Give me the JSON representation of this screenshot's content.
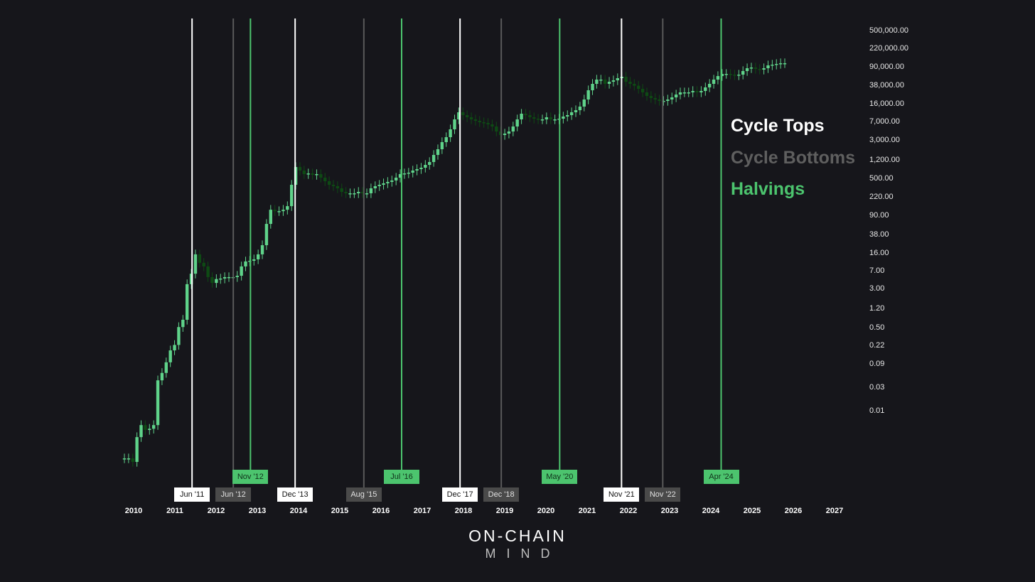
{
  "colors": {
    "background": "#16161b",
    "top": "#ffffff",
    "bottom": "#5a5a5a",
    "bottom_label": "#4a4a4a",
    "halving": "#4cc46e",
    "candle_up": "#5fd38a",
    "candle_down": "#0e4a14"
  },
  "legend": {
    "tops": "Cycle Tops",
    "bottoms": "Cycle Bottoms",
    "halvings": "Halvings"
  },
  "logo": {
    "line1": "ON-CHAIN",
    "line2": "MIND"
  },
  "chart_data": {
    "type": "candlestick",
    "y_scale": "log",
    "grid": false,
    "legend_placement": "right",
    "y_ticks": [
      "500,000.00",
      "220,000.00",
      "90,000.00",
      "38,000.00",
      "16,000.00",
      "7,000.00",
      "3,000.00",
      "1,200.00",
      "500.00",
      "220.00",
      "90.00",
      "38.00",
      "16.00",
      "7.00",
      "3.00",
      "1.20",
      "0.50",
      "0.22",
      "0.09",
      "0.03",
      "0.01"
    ],
    "x_ticks": [
      "2010",
      "2011",
      "2012",
      "2013",
      "2014",
      "2015",
      "2016",
      "2017",
      "2018",
      "2019",
      "2020",
      "2021",
      "2022",
      "2023",
      "2024",
      "2025",
      "2026",
      "2027"
    ],
    "markers": [
      {
        "type": "top",
        "date": "2011-06",
        "label": "Jun '11"
      },
      {
        "type": "halving",
        "date": "2012-11",
        "label": "Nov '12"
      },
      {
        "type": "bottom",
        "date": "2012-06",
        "label": "Jun '12"
      },
      {
        "type": "top",
        "date": "2013-12",
        "label": "Dec '13"
      },
      {
        "type": "bottom",
        "date": "2015-08",
        "label": "Aug '15"
      },
      {
        "type": "halving",
        "date": "2016-07",
        "label": "Jul '16"
      },
      {
        "type": "top",
        "date": "2017-12",
        "label": "Dec '17"
      },
      {
        "type": "bottom",
        "date": "2018-12",
        "label": "Dec '18"
      },
      {
        "type": "halving",
        "date": "2020-05",
        "label": "May '20"
      },
      {
        "type": "top",
        "date": "2021-11",
        "label": "Nov '21"
      },
      {
        "type": "bottom",
        "date": "2022-11",
        "label": "Nov '22"
      },
      {
        "type": "halving",
        "date": "2024-04",
        "label": "Apr '24"
      }
    ],
    "closes": [
      0.00092,
      0.00092,
      0.00078,
      0.0025,
      0.0044,
      0.0035,
      0.0037,
      0.0044,
      0.036,
      0.051,
      0.084,
      0.147,
      0.19,
      0.44,
      0.62,
      3.3,
      5.4,
      13.4,
      9.0,
      7.6,
      4.6,
      3.5,
      4.2,
      4.3,
      4.6,
      4.6,
      4.6,
      4.9,
      7.6,
      9.6,
      9.9,
      10.6,
      13.4,
      20.6,
      56,
      109,
      102,
      102,
      109,
      129,
      352,
      811,
      687,
      581,
      600,
      560,
      581,
      492,
      416,
      352,
      330,
      298,
      252,
      236,
      236,
      236,
      252,
      236,
      236,
      298,
      330,
      352,
      377,
      403,
      431,
      492,
      581,
      601,
      622,
      687,
      735,
      785,
      897,
      1026,
      1432,
      1871,
      2612,
      3296,
      4764,
      7603,
      10617,
      9290,
      8395,
      7603,
      7112,
      6653,
      6427,
      6012,
      5445,
      4305,
      3648,
      3899,
      4305,
      5445,
      7603,
      9931,
      9290,
      8395,
      7852,
      7603,
      7603,
      8395,
      7603,
      7603,
      7852,
      8690,
      9290,
      10617,
      11722,
      13868,
      19364,
      29850,
      40360,
      49320,
      49320,
      40360,
      44570,
      47640,
      52720,
      56360,
      44570,
      40360,
      37000,
      31920,
      27040,
      22860,
      20700,
      19364,
      18110,
      18110,
      19364,
      21380,
      24430,
      27040,
      27040,
      27040,
      28910,
      27040,
      28910,
      34200,
      40360,
      49320,
      58210,
      64420,
      64420,
      62230,
      60260,
      62230,
      73620,
      84140,
      87000,
      81370,
      78700,
      84140,
      96160,
      99540,
      102900,
      106400,
      106400
    ]
  }
}
